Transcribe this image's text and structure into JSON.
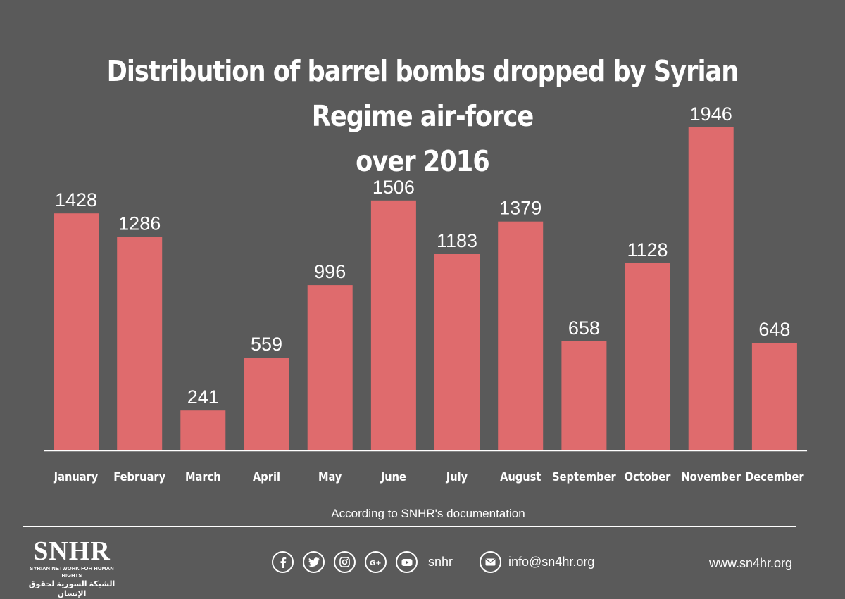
{
  "chart_data": {
    "type": "bar",
    "title": "Distribution of barrel bombs dropped by Syrian Regime air-force over 2016",
    "title_lines": [
      "Distribution of barrel bombs dropped by Syrian Regime air-force",
      "over 2016"
    ],
    "categories": [
      "January",
      "February",
      "March",
      "April",
      "May",
      "June",
      "July",
      "August",
      "September",
      "October",
      "November",
      "December"
    ],
    "values": [
      1428,
      1286,
      241,
      559,
      996,
      1506,
      1183,
      1379,
      658,
      1128,
      1946,
      648
    ],
    "xlabel": "",
    "ylabel": "",
    "ylim": [
      0,
      2000
    ],
    "grid": false,
    "bar_color": "#df6b6d",
    "data_labels": true
  },
  "footer": {
    "note": "According to SNHR's documentation",
    "logo_text": "SNHR",
    "logo_subtitle": "SYRIAN NETWORK FOR HUMAN RIGHTS",
    "logo_subtitle_ar": "الشبكة السورية لحقوق الإنسان",
    "social_icons": [
      "facebook-icon",
      "twitter-icon",
      "instagram-icon",
      "google-plus-icon",
      "youtube-icon"
    ],
    "social_handle": "snhr",
    "email": "info@sn4hr.org",
    "website": "www.sn4hr.org"
  },
  "colors": {
    "background": "#5a5a5a",
    "text": "#ffffff",
    "bar": "#df6b6d"
  }
}
